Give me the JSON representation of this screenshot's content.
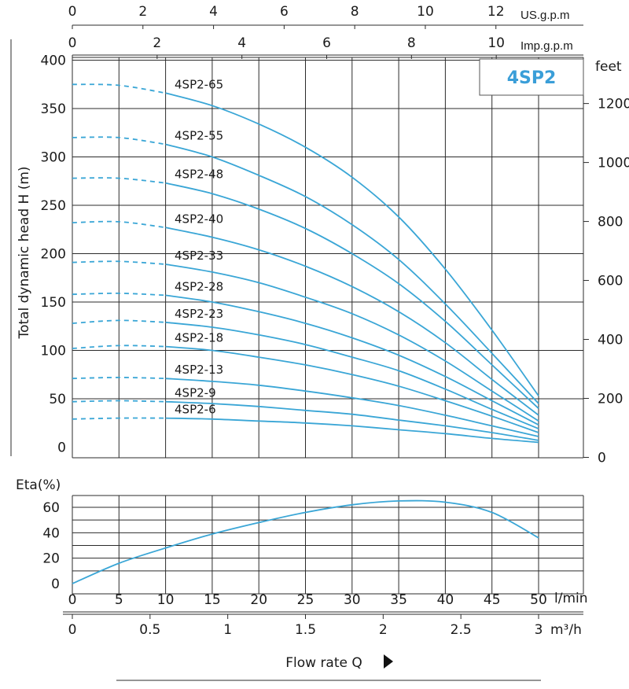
{
  "badge": "4SP2",
  "colors": {
    "curve": "#3aa6d6",
    "grid": "#2b2b2b",
    "badge": "#3a9ed8"
  },
  "top_axes": {
    "usgpm": {
      "unit": "US.g.p.m",
      "ticks": [
        "0",
        "2",
        "4",
        "6",
        "8",
        "10",
        "12"
      ]
    },
    "impgpm": {
      "unit": "Imp.g.p.m",
      "ticks": [
        "0",
        "2",
        "4",
        "6",
        "8",
        "10"
      ]
    }
  },
  "head_axis": {
    "label": "Total dynamic head H (m)",
    "ticks": [
      "0",
      "50",
      "100",
      "150",
      "200",
      "250",
      "300",
      "350",
      "400"
    ]
  },
  "feet_axis": {
    "unit": "feet",
    "ticks": [
      "0",
      "200",
      "400",
      "600",
      "800",
      "1000",
      "1200"
    ]
  },
  "eta_axis": {
    "label": "Eta(%)",
    "ticks": [
      "0",
      "20",
      "40",
      "60"
    ]
  },
  "flow_axis_lmin": {
    "unit": "l/min",
    "ticks": [
      "0",
      "5",
      "10",
      "15",
      "20",
      "25",
      "30",
      "35",
      "40",
      "45",
      "50"
    ]
  },
  "flow_axis_m3h": {
    "unit": "m³/h",
    "ticks": [
      "0",
      "0.5",
      "1",
      "1.5",
      "2",
      "2.5",
      "3"
    ]
  },
  "flow_title": "Flow rate Q",
  "chart_data": {
    "type": "line",
    "x_unit": "l/min",
    "xlim": [
      0,
      50
    ],
    "ylim_head": [
      0,
      400
    ],
    "ylim_eta": [
      0,
      70
    ],
    "grid": true,
    "dashed_until_x": 10,
    "series": [
      {
        "name": "4SP2-65",
        "label_head": 366,
        "x": [
          0,
          5,
          10,
          15,
          20,
          25,
          30,
          35,
          40,
          45,
          50
        ],
        "y": [
          375,
          374,
          366,
          353,
          334,
          310,
          279,
          238,
          184,
          121,
          53
        ]
      },
      {
        "name": "4SP2-55",
        "label_head": 313,
        "x": [
          0,
          5,
          10,
          15,
          20,
          25,
          30,
          35,
          40,
          45,
          50
        ],
        "y": [
          320,
          320,
          313,
          300,
          281,
          259,
          230,
          194,
          148,
          97,
          45
        ]
      },
      {
        "name": "4SP2-48",
        "label_head": 273,
        "x": [
          0,
          5,
          10,
          15,
          20,
          25,
          30,
          35,
          40,
          45,
          50
        ],
        "y": [
          278,
          278,
          273,
          262,
          246,
          226,
          200,
          169,
          130,
          85,
          40
        ]
      },
      {
        "name": "4SP2-40",
        "label_head": 227,
        "x": [
          0,
          5,
          10,
          15,
          20,
          25,
          30,
          35,
          40,
          45,
          50
        ],
        "y": [
          232,
          233,
          227,
          217,
          204,
          187,
          166,
          140,
          108,
          70,
          33
        ]
      },
      {
        "name": "4SP2-33",
        "label_head": 189,
        "x": [
          0,
          5,
          10,
          15,
          20,
          25,
          30,
          35,
          40,
          45,
          50
        ],
        "y": [
          191,
          192,
          189,
          181,
          170,
          155,
          138,
          116,
          89,
          58,
          27
        ]
      },
      {
        "name": "4SP2-28",
        "label_head": 157,
        "x": [
          0,
          5,
          10,
          15,
          20,
          25,
          30,
          35,
          40,
          45,
          50
        ],
        "y": [
          158,
          159,
          157,
          150,
          140,
          128,
          113,
          95,
          73,
          48,
          23
        ]
      },
      {
        "name": "4SP2-23",
        "label_head": 129,
        "x": [
          0,
          5,
          10,
          15,
          20,
          25,
          30,
          35,
          40,
          45,
          50
        ],
        "y": [
          128,
          131,
          129,
          124,
          116,
          106,
          93,
          79,
          60,
          39,
          19
        ]
      },
      {
        "name": "4SP2-18",
        "label_head": 104,
        "x": [
          0,
          5,
          10,
          15,
          20,
          25,
          30,
          35,
          40,
          45,
          50
        ],
        "y": [
          102,
          105,
          104,
          100,
          93,
          85,
          75,
          63,
          48,
          32,
          15
        ]
      },
      {
        "name": "4SP2-13",
        "label_head": 71,
        "x": [
          0,
          5,
          10,
          15,
          20,
          25,
          30,
          35,
          40,
          45,
          50
        ],
        "y": [
          71,
          72,
          71,
          68,
          64,
          58,
          51,
          43,
          33,
          22,
          11
        ]
      },
      {
        "name": "4SP2-9",
        "label_head": 47,
        "x": [
          0,
          5,
          10,
          15,
          20,
          25,
          30,
          35,
          40,
          45,
          50
        ],
        "y": [
          47,
          48,
          47,
          45,
          42,
          38,
          34,
          28,
          22,
          15,
          7
        ]
      },
      {
        "name": "4SP2-6",
        "label_head": 30,
        "x": [
          0,
          5,
          10,
          15,
          20,
          25,
          30,
          35,
          40,
          45,
          50
        ],
        "y": [
          29,
          30,
          30,
          29,
          27,
          25,
          22,
          18,
          14,
          9,
          5
        ]
      }
    ],
    "efficiency": {
      "x": [
        0,
        5,
        10,
        15,
        20,
        25,
        30,
        35,
        40,
        45,
        50
      ],
      "y": [
        0,
        16,
        28,
        39,
        48,
        56,
        62,
        65,
        64,
        56,
        36
      ]
    }
  }
}
